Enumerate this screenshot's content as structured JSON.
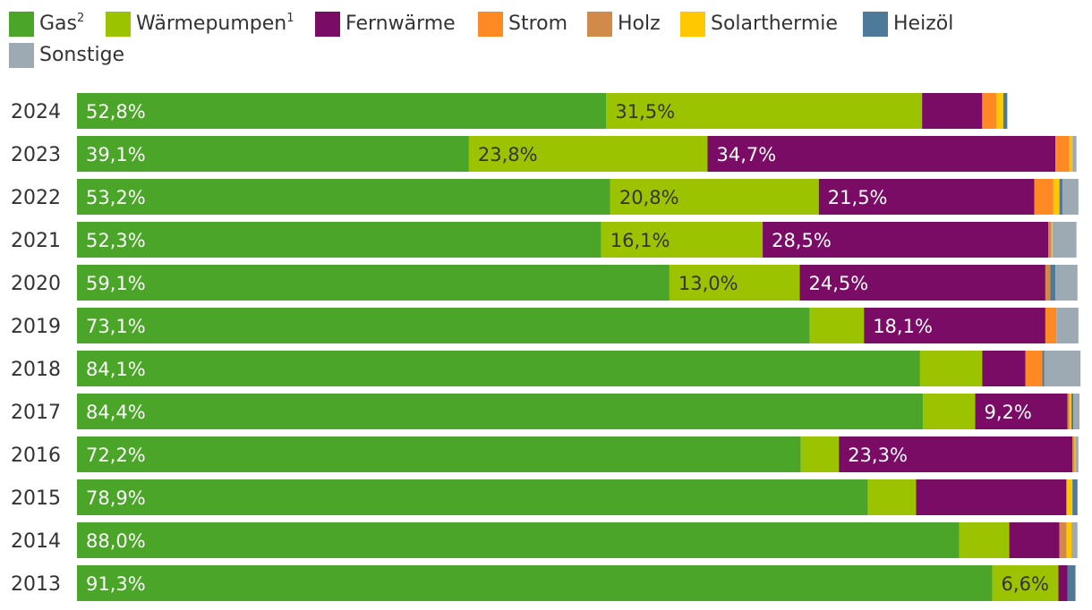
{
  "chart_data": {
    "type": "bar",
    "orientation": "horizontal",
    "stacked": true,
    "categories": [
      "2024",
      "2023",
      "2022",
      "2021",
      "2020",
      "2019",
      "2018",
      "2017",
      "2016",
      "2015",
      "2014",
      "2013"
    ],
    "series": [
      {
        "name": "Gas",
        "superscript": "2",
        "color": "#4aa529",
        "values": [
          52.8,
          39.1,
          53.2,
          52.3,
          59.1,
          73.1,
          84.1,
          84.4,
          72.2,
          78.9,
          88.0,
          91.3
        ],
        "labels": [
          "52,8%",
          "39,1%",
          "53,2%",
          "52,3%",
          "59,1%",
          "73,1%",
          "84,1%",
          "84,4%",
          "72,2%",
          "78,9%",
          "88,0%",
          "91,3%"
        ],
        "label_color": "#ffffff"
      },
      {
        "name": "Wärmepumpen",
        "superscript": "1",
        "color": "#9cc300",
        "values": [
          31.5,
          23.8,
          20.8,
          16.1,
          13.0,
          5.4,
          6.2,
          5.2,
          3.8,
          4.8,
          5.0,
          6.6
        ],
        "labels": [
          "31,5%",
          "23,8%",
          "20,8%",
          "16,1%",
          "13,0%",
          "",
          "",
          "",
          "",
          "",
          "",
          "6,6%"
        ],
        "label_color": "#333333"
      },
      {
        "name": "Fernwärme",
        "superscript": "",
        "color": "#7a0c66",
        "values": [
          6.0,
          34.7,
          21.5,
          28.5,
          24.5,
          18.1,
          4.3,
          9.2,
          23.3,
          15.0,
          5.0,
          0.9
        ],
        "labels": [
          "",
          "34,7%",
          "21,5%",
          "28,5%",
          "24,5%",
          "18,1%",
          "",
          "9,2%",
          "23,3%",
          "",
          "",
          ""
        ],
        "label_color": "#ffffff"
      },
      {
        "name": "Strom",
        "superscript": "",
        "color": "#ff8a23",
        "values": [
          1.4,
          1.4,
          1.9,
          0.0,
          0.0,
          1.1,
          1.7,
          0.0,
          0.0,
          0.0,
          0.0,
          0.0
        ],
        "labels": [
          "",
          "",
          "",
          "",
          "",
          "",
          "",
          "",
          "",
          "",
          "",
          ""
        ],
        "label_color": "#ffffff"
      },
      {
        "name": "Holz",
        "superscript": "",
        "color": "#d18a4a",
        "values": [
          0.0,
          0.0,
          0.0,
          0.3,
          0.5,
          0.0,
          0.0,
          0.2,
          0.2,
          0.0,
          0.7,
          0.0
        ],
        "labels": [
          "",
          "",
          "",
          "",
          "",
          "",
          "",
          "",
          "",
          "",
          "",
          ""
        ],
        "label_color": "#ffffff"
      },
      {
        "name": "Solarthermie",
        "superscript": "",
        "color": "#ffc800",
        "values": [
          0.7,
          0.3,
          0.6,
          0.1,
          0.0,
          0.0,
          0.0,
          0.2,
          0.1,
          0.6,
          0.5,
          0.0
        ],
        "labels": [
          "",
          "",
          "",
          "",
          "",
          "",
          "",
          "",
          "",
          "",
          "",
          ""
        ],
        "label_color": "#333333"
      },
      {
        "name": "Heizöl",
        "superscript": "",
        "color": "#4c7a98",
        "values": [
          0.4,
          0.0,
          0.3,
          0.0,
          0.5,
          0.0,
          0.2,
          0.2,
          0.0,
          0.5,
          0.0,
          0.8
        ],
        "labels": [
          "",
          "",
          "",
          "",
          "",
          "",
          "",
          "",
          "",
          "",
          "",
          ""
        ],
        "label_color": "#ffffff"
      },
      {
        "name": "Sonstige",
        "superscript": "",
        "color": "#9eaab3",
        "values": [
          0.0,
          0.4,
          1.6,
          2.4,
          2.2,
          2.2,
          3.6,
          0.6,
          0.3,
          0.0,
          0.6,
          0.0
        ],
        "labels": [
          "",
          "",
          "",
          "",
          "",
          "",
          "",
          "",
          "",
          "",
          "",
          ""
        ],
        "label_color": "#ffffff"
      }
    ],
    "xlim": [
      0,
      100
    ],
    "legend_position": "top",
    "grid": false
  }
}
